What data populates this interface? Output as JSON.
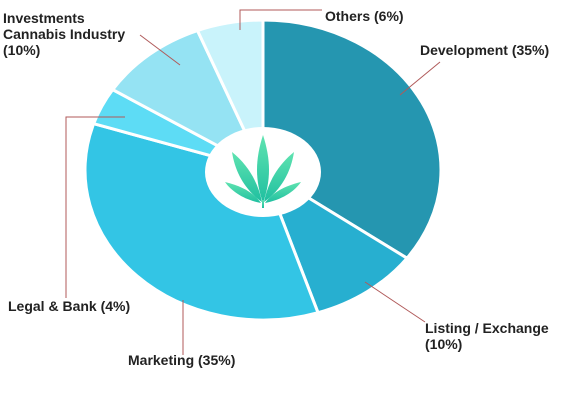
{
  "chart_data": {
    "type": "pie",
    "categories": [
      "Development",
      "Listing / Exchange",
      "Marketing",
      "Legal & Bank",
      "Investments Cannabis Industry",
      "Others"
    ],
    "values": [
      35,
      10,
      35,
      4,
      10,
      6
    ],
    "value_labels": [
      "(35%)",
      "(10%)",
      "(35%)",
      "(4%)",
      "(10%)",
      "(6%)"
    ],
    "colors": [
      "#2596b0",
      "#27afd0",
      "#33c5e5",
      "#5ddcf5",
      "#95e3f3",
      "#c9f3fb"
    ]
  }
}
